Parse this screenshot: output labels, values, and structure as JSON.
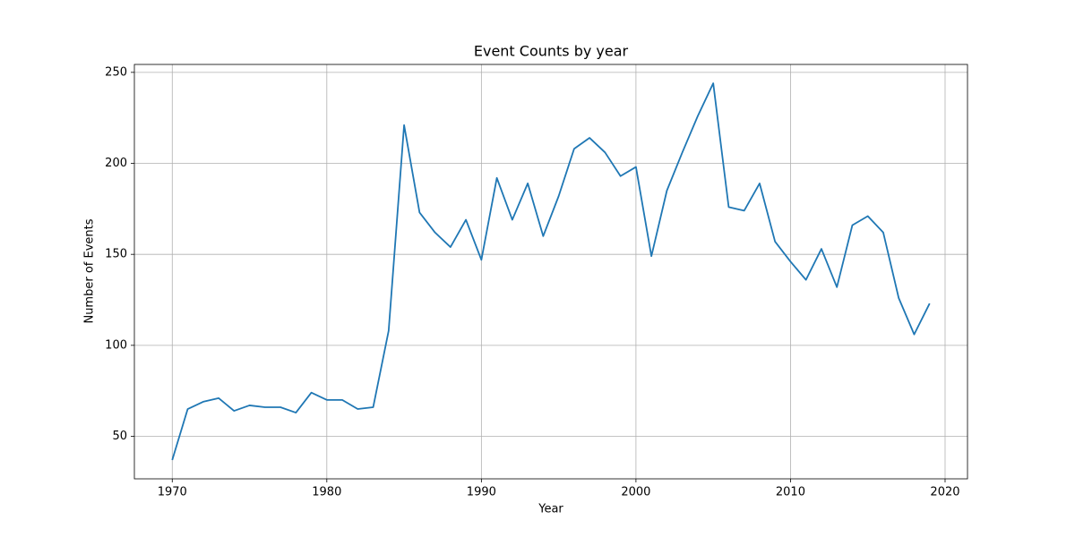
{
  "chart_data": {
    "type": "line",
    "title": "Event Counts by year",
    "xlabel": "Year",
    "ylabel": "Number of Events",
    "x": [
      1970,
      1971,
      1972,
      1973,
      1974,
      1975,
      1976,
      1977,
      1978,
      1979,
      1980,
      1981,
      1982,
      1983,
      1984,
      1985,
      1986,
      1987,
      1988,
      1989,
      1990,
      1991,
      1992,
      1993,
      1994,
      1995,
      1996,
      1997,
      1998,
      1999,
      2000,
      2001,
      2002,
      2003,
      2004,
      2005,
      2006,
      2007,
      2008,
      2009,
      2010,
      2011,
      2012,
      2013,
      2014,
      2015,
      2016,
      2017,
      2018,
      2019
    ],
    "series": [
      {
        "color": "#1f77b4",
        "values": [
          37,
          65,
          69,
          71,
          64,
          67,
          66,
          66,
          63,
          74,
          70,
          70,
          65,
          66,
          108,
          221,
          173,
          162,
          154,
          169,
          147,
          192,
          169,
          189,
          160,
          182,
          208,
          214,
          206,
          193,
          198,
          149,
          185,
          206,
          226,
          244,
          176,
          174,
          189,
          157,
          146,
          136,
          153,
          132,
          166,
          171,
          162,
          126,
          106,
          123
        ]
      }
    ],
    "xlim": [
      1967.55,
      2021.45
    ],
    "xticks": [
      1970,
      1980,
      1990,
      2000,
      2010,
      2020
    ],
    "ylim": [
      26.65,
      254.35
    ],
    "yticks": [
      50,
      100,
      150,
      200,
      250
    ],
    "grid": true
  }
}
